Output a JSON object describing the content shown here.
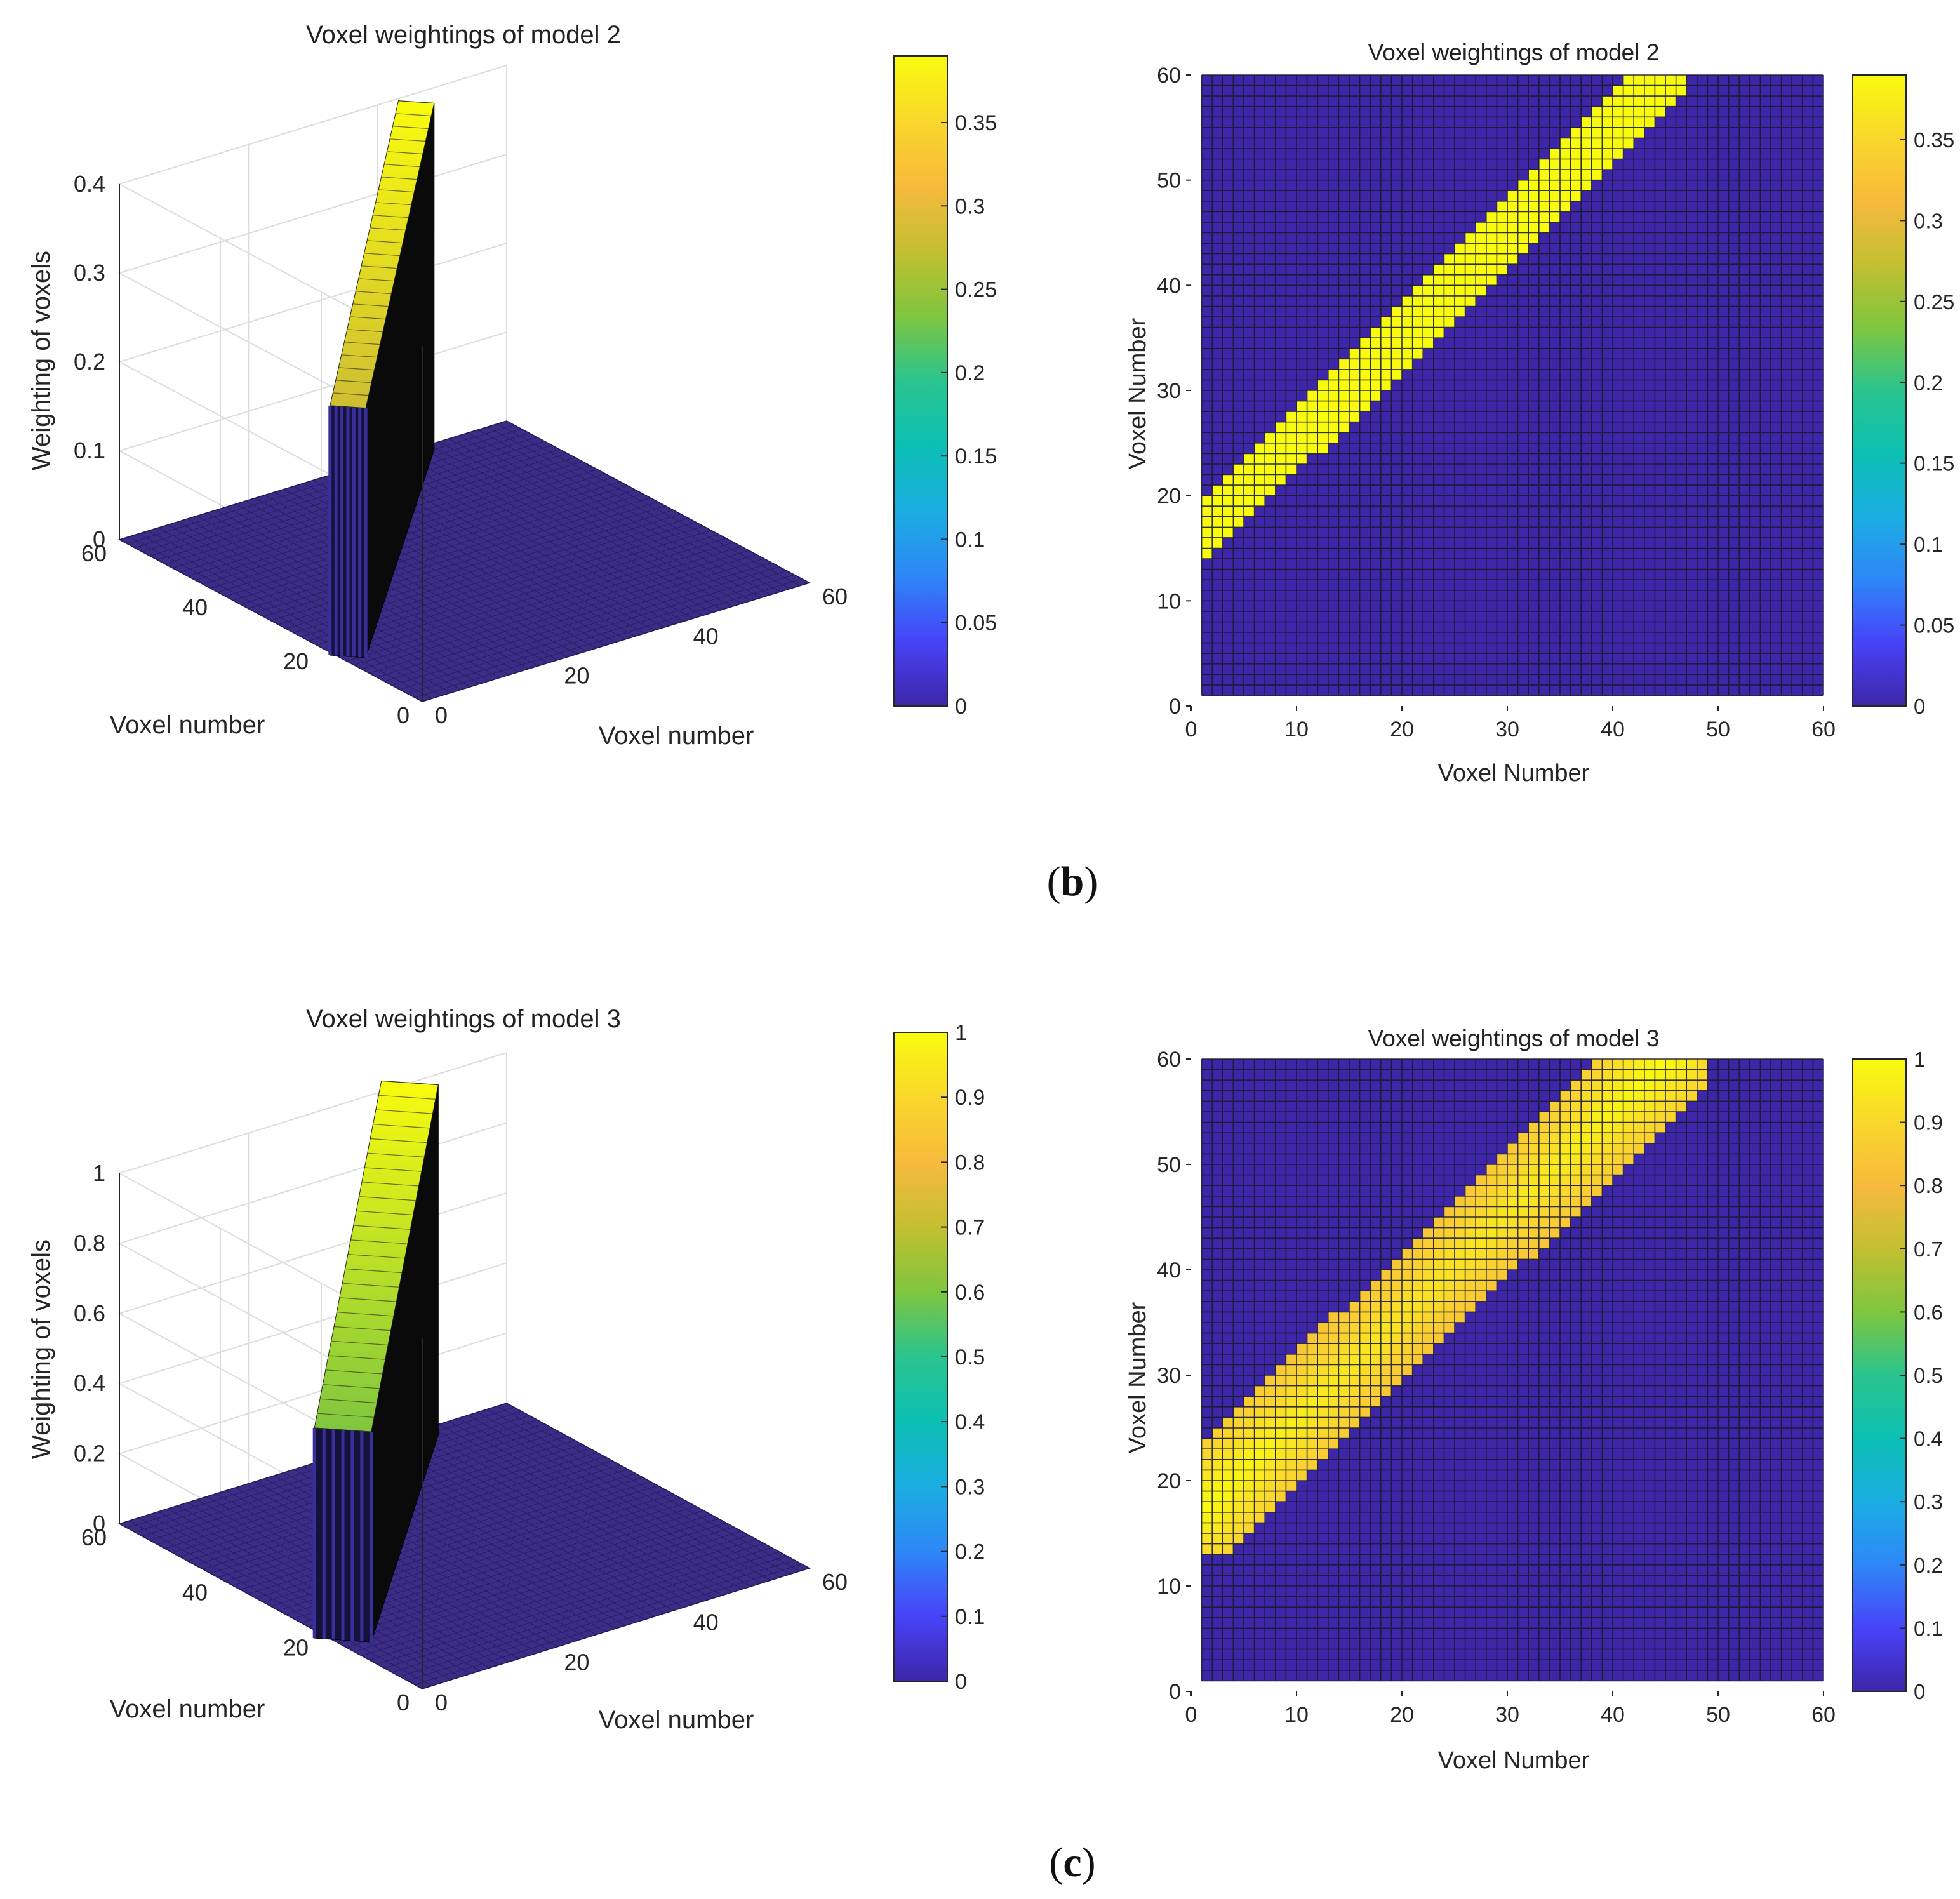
{
  "panels": [
    {
      "caption_letter": "b",
      "caption_open": "(",
      "caption_close": ")"
    },
    {
      "caption_letter": "c",
      "caption_open": "(",
      "caption_close": ")"
    }
  ],
  "chart_data": [
    {
      "type": "surface3d",
      "panel": "b",
      "title": "Voxel weightings of model 2",
      "xlabel": "Voxel number",
      "ylabel": "Voxel number",
      "zlabel": "Weighting of voxels",
      "xticks": [
        "0",
        "20",
        "40",
        "60"
      ],
      "yticks": [
        "0",
        "20",
        "40",
        "60"
      ],
      "zticks": [
        "0",
        "0.1",
        "0.2",
        "0.3",
        "0.4"
      ],
      "xlim": [
        0,
        60
      ],
      "ylim": [
        0,
        60
      ],
      "zlim": [
        0,
        0.4
      ],
      "peak_value": 0.39,
      "band": {
        "start": [
          1,
          16
        ],
        "end": [
          46,
          60
        ],
        "half_width": 2.2
      },
      "colorbar": {
        "ticks": [
          "0",
          "0.05",
          "0.1",
          "0.15",
          "0.2",
          "0.25",
          "0.3",
          "0.35"
        ],
        "range": [
          0,
          0.39
        ]
      }
    },
    {
      "type": "heatmap",
      "panel": "b",
      "title": "Voxel weightings of model 2",
      "xlabel": "Voxel Number",
      "ylabel": "Voxel Number",
      "xticks": [
        "0",
        "10",
        "20",
        "30",
        "40",
        "50",
        "60"
      ],
      "yticks": [
        "0",
        "10",
        "20",
        "30",
        "40",
        "50",
        "60"
      ],
      "xlim": [
        0,
        60
      ],
      "ylim": [
        0,
        60
      ],
      "grid_cells": 60,
      "band": {
        "start": [
          1,
          16.5
        ],
        "end": [
          45,
          60
        ],
        "half_width": 2.4
      },
      "band_value": 0.39,
      "background_value": 0,
      "colorbar": {
        "ticks": [
          "0",
          "0.05",
          "0.1",
          "0.15",
          "0.2",
          "0.25",
          "0.3",
          "0.35"
        ],
        "range": [
          0,
          0.39
        ]
      }
    },
    {
      "type": "surface3d",
      "panel": "c",
      "title": "Voxel weightings of model 3",
      "xlabel": "Voxel number",
      "ylabel": "Voxel number",
      "zlabel": "Weighting of voxels",
      "xticks": [
        "0",
        "20",
        "40",
        "60"
      ],
      "yticks": [
        "0",
        "20",
        "40",
        "60"
      ],
      "zticks": [
        "0",
        "0.2",
        "0.4",
        "0.6",
        "0.8",
        "1"
      ],
      "xlim": [
        0,
        60
      ],
      "ylim": [
        0,
        60
      ],
      "zlim": [
        0,
        1
      ],
      "peak_value": 1,
      "band": {
        "start": [
          1,
          17
        ],
        "end": [
          45,
          60
        ],
        "half_width": 3.5
      },
      "colorbar": {
        "ticks": [
          "0",
          "0.1",
          "0.2",
          "0.3",
          "0.4",
          "0.5",
          "0.6",
          "0.7",
          "0.8",
          "0.9",
          "1"
        ],
        "range": [
          0,
          1
        ]
      }
    },
    {
      "type": "heatmap",
      "panel": "c",
      "title": "Voxel weightings of model 3",
      "xlabel": "Voxel Number",
      "ylabel": "Voxel Number",
      "xticks": [
        "0",
        "10",
        "20",
        "30",
        "40",
        "50",
        "60"
      ],
      "yticks": [
        "0",
        "10",
        "20",
        "30",
        "40",
        "50",
        "60"
      ],
      "xlim": [
        0,
        60
      ],
      "ylim": [
        0,
        60
      ],
      "grid_cells": 60,
      "band": {
        "start": [
          1,
          17
        ],
        "end": [
          45,
          60
        ],
        "half_width": 4.5
      },
      "band_value_range": [
        0.88,
        1.0
      ],
      "background_value": 0,
      "colorbar": {
        "ticks": [
          "0",
          "0.1",
          "0.2",
          "0.3",
          "0.4",
          "0.5",
          "0.6",
          "0.7",
          "0.8",
          "0.9",
          "1"
        ],
        "range": [
          0,
          1
        ]
      }
    }
  ],
  "colors": {
    "cmap": [
      "#3e26a8",
      "#4743f8",
      "#2e87f7",
      "#1bade2",
      "#0cbfb3",
      "#2ac48e",
      "#7fc63f",
      "#c3bf31",
      "#f7ba3c",
      "#f9d72c",
      "#f9fb0e"
    ],
    "surface_dark": "#0a0a0a",
    "floor": "#3b2c86",
    "grid_line": "#1a1a2e",
    "axis": "#262626",
    "box_grid": "#dcdcdc"
  }
}
